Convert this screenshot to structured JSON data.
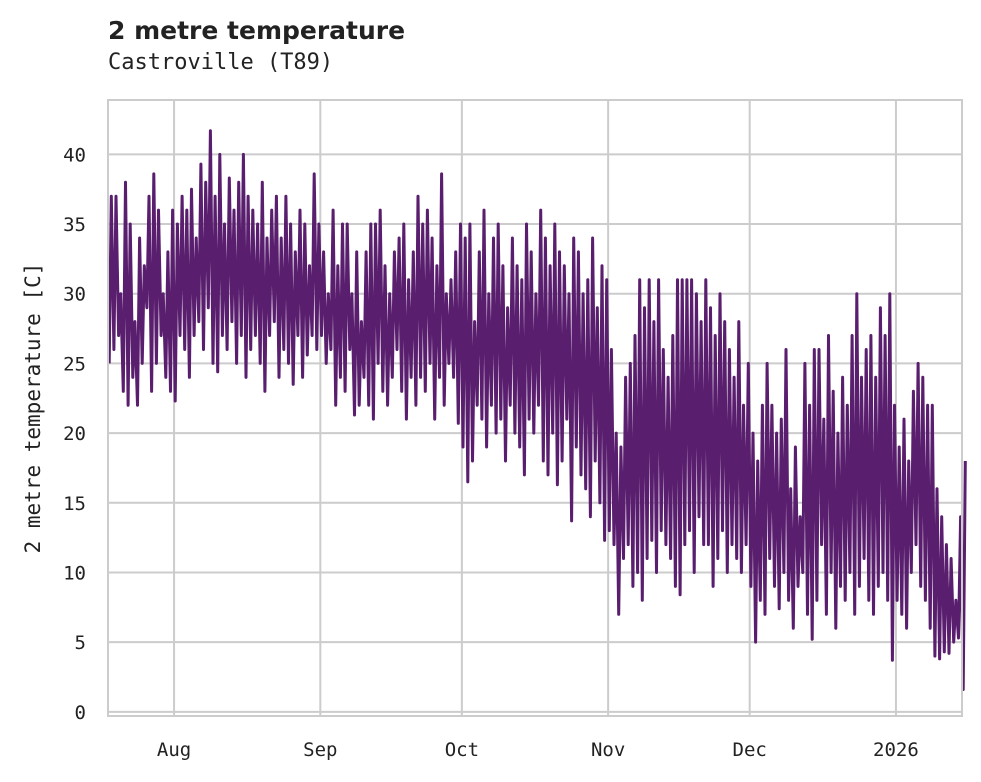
{
  "chart_data": {
    "type": "line",
    "title": "2 metre temperature",
    "subtitle": "Castroville (T89)",
    "xlabel": "",
    "ylabel": "2 metre temperature [C]",
    "ylim": [
      -0.3,
      43.9
    ],
    "xlim": [
      "2025-07-18",
      "2026-01-15"
    ],
    "grid": true,
    "color": "#5a1e6e",
    "yticks": [
      0,
      5,
      10,
      15,
      20,
      25,
      30,
      35,
      40
    ],
    "xticks": [
      {
        "date": "2025-08-01",
        "label": "Aug"
      },
      {
        "date": "2025-09-01",
        "label": "Sep"
      },
      {
        "date": "2025-10-01",
        "label": "Oct"
      },
      {
        "date": "2025-11-01",
        "label": "Nov"
      },
      {
        "date": "2025-12-01",
        "label": "Dec"
      },
      {
        "date": "2026-01-01",
        "label": "2026"
      }
    ],
    "series_note": "daily low/high oscillation starting 2025-07-18",
    "start_date": "2025-07-18",
    "daily_high": [
      37,
      37,
      30,
      38,
      35,
      28,
      34,
      32,
      37,
      38.6,
      36,
      30,
      33,
      36,
      35,
      37,
      36,
      37.5,
      34,
      39.3,
      38,
      41.7,
      37,
      40,
      35,
      38.3,
      36,
      38,
      40,
      37,
      36,
      35,
      38,
      34,
      36,
      37,
      34,
      37,
      35,
      33,
      36,
      35,
      32,
      38.6,
      35,
      33,
      30,
      36,
      32,
      35,
      35,
      30,
      33,
      28,
      33,
      35,
      35,
      36,
      32,
      30,
      33,
      34,
      35,
      31,
      33,
      37,
      35,
      36,
      34,
      32,
      38.6,
      30,
      31,
      33,
      35,
      34,
      35,
      28,
      33,
      36,
      30,
      34,
      35,
      32,
      29,
      34,
      32,
      31,
      35,
      33,
      30,
      36,
      34,
      32,
      35,
      33,
      32,
      30,
      34,
      33,
      30,
      31,
      34,
      29,
      32,
      31,
      26,
      20,
      19,
      24,
      25,
      27,
      31,
      29,
      31,
      28,
      31,
      26,
      24,
      27,
      31,
      31,
      31,
      31,
      30,
      28,
      31,
      29,
      27,
      30,
      28,
      26,
      24,
      28,
      22,
      25,
      20,
      18,
      22,
      25,
      22,
      20,
      21,
      26,
      16,
      19,
      14,
      25,
      22,
      26,
      26,
      21,
      27,
      23,
      20,
      24,
      22,
      27,
      30,
      24,
      26,
      27,
      24,
      29,
      27,
      30,
      22,
      19,
      21,
      18,
      23,
      25,
      24,
      22,
      22,
      16,
      14,
      12,
      11,
      8,
      14,
      18
    ],
    "daily_low": [
      25,
      26,
      27,
      23,
      22,
      24,
      22,
      25,
      29,
      23,
      25,
      27,
      24,
      23,
      22.3,
      27,
      26,
      24,
      27,
      28,
      26,
      29,
      25,
      24.4,
      27,
      26,
      28,
      25,
      27,
      24,
      26,
      27,
      25,
      23,
      27,
      28,
      24,
      26,
      25,
      23.5,
      27,
      24,
      25.6,
      27,
      26,
      27,
      25,
      26,
      22,
      24,
      23,
      26,
      21.3,
      22,
      24,
      22,
      21,
      25,
      23,
      22,
      24,
      26,
      23,
      21,
      24,
      22,
      24,
      23,
      25,
      21,
      24,
      22,
      25,
      24,
      20.7,
      19,
      16.5,
      18,
      22,
      21,
      19,
      22,
      20,
      21,
      18,
      22,
      20,
      19,
      17,
      21,
      20,
      22,
      18,
      17,
      20,
      16.3,
      18,
      21,
      13.7,
      19,
      17,
      16,
      14,
      18,
      15,
      12.3,
      13,
      12,
      7,
      11,
      12,
      9,
      10,
      8,
      11,
      12.3,
      10,
      13,
      12,
      11,
      9,
      8.4,
      12,
      13,
      10,
      14,
      12,
      12,
      9,
      11,
      13,
      10,
      12,
      11,
      10,
      12,
      9,
      5,
      8,
      7,
      11,
      9,
      7.4,
      10,
      8,
      6,
      9,
      10,
      7,
      5.2,
      8,
      12,
      7,
      10,
      6,
      9,
      8,
      10,
      7,
      9,
      11,
      8,
      7,
      9,
      10,
      8,
      3.7,
      8,
      7,
      6,
      10,
      12,
      9,
      8,
      6,
      4,
      3.8,
      4.3,
      4.2,
      5,
      5.3,
      1.6
    ]
  }
}
